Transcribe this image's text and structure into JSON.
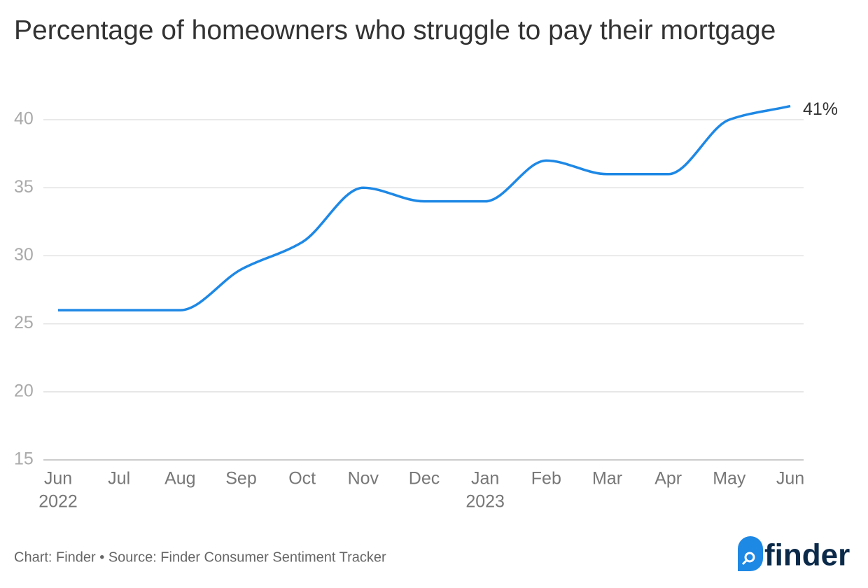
{
  "chart_data": {
    "type": "line",
    "title": "Percentage of homeowners who struggle to pay their mortgage",
    "categories": [
      "Jun",
      "Jul",
      "Aug",
      "Sep",
      "Oct",
      "Nov",
      "Dec",
      "Jan",
      "Feb",
      "Mar",
      "Apr",
      "May",
      "Jun"
    ],
    "x_year_labels": [
      "2022",
      null,
      null,
      null,
      null,
      null,
      null,
      "2023",
      null,
      null,
      null,
      null,
      null
    ],
    "values": [
      26,
      26,
      26,
      29,
      31,
      35,
      34,
      34,
      37,
      36,
      36,
      40,
      41
    ],
    "value_labels": [
      null,
      null,
      null,
      null,
      null,
      null,
      null,
      null,
      null,
      null,
      null,
      null,
      "41%"
    ],
    "color": "#1e88e5",
    "ylim": [
      15,
      41
    ],
    "yticks": [
      15,
      20,
      25,
      30,
      35,
      40
    ],
    "grid": true,
    "footer": "Chart: Finder • Source: Finder Consumer Sentiment Tracker",
    "logo": "finder"
  }
}
